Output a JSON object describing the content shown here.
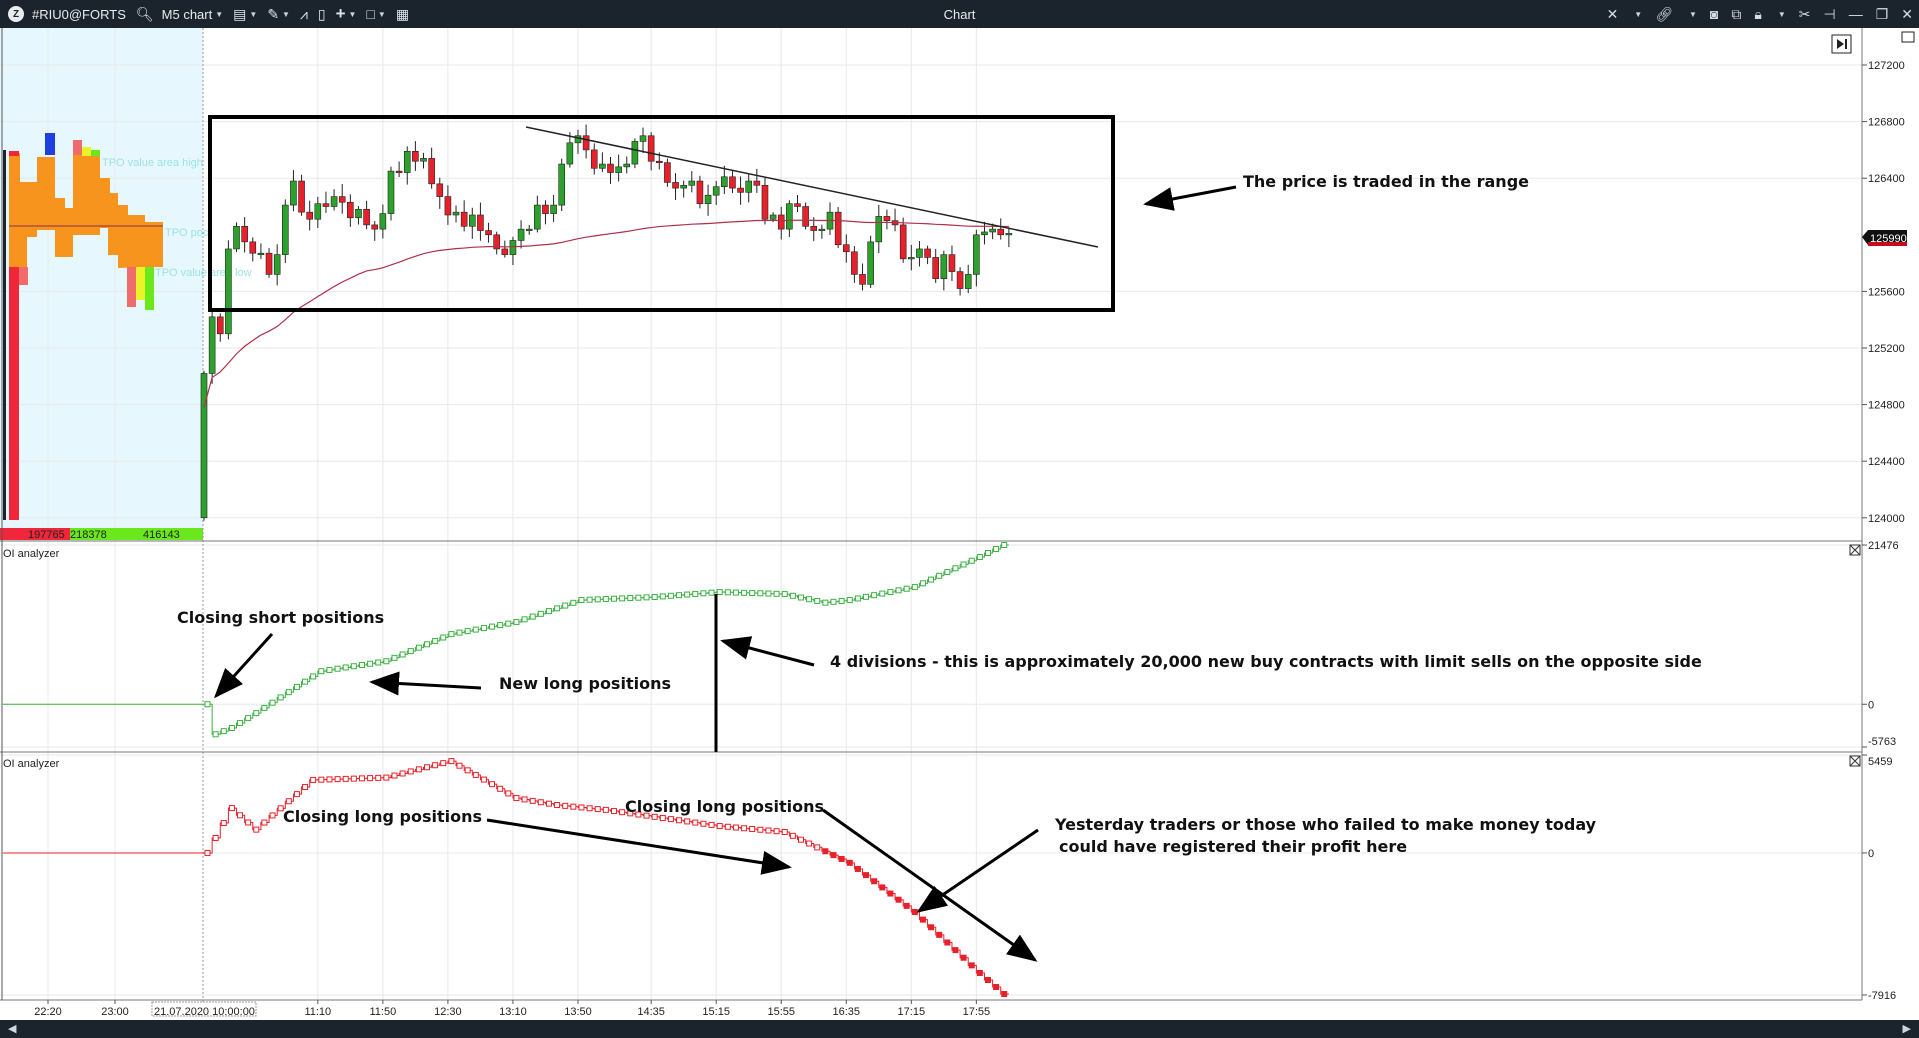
{
  "titlebar": {
    "symbol": "#RIU0@FORTS",
    "chart_type": "M5 chart",
    "window_title": "Chart",
    "left_icons": [
      "logo-icon",
      "search-icon",
      "display-icon",
      "pencil-icon",
      "indicator-icon",
      "template-icon",
      "crosshair-icon",
      "window-icon",
      "color-icon"
    ],
    "right_icons": [
      "cross-icon",
      "link-icon",
      "camera-icon",
      "copy-icon",
      "lock-icon",
      "tools-icon",
      "pin-icon",
      "minimize-icon",
      "restore-icon",
      "close-icon"
    ]
  },
  "price_axis": {
    "ticks": [
      "127200",
      "126800",
      "126400",
      "125600",
      "125200",
      "124800",
      "124400",
      "124000"
    ],
    "tick_values": [
      127200,
      126800,
      126400,
      125600,
      125200,
      124800,
      124400,
      124000
    ],
    "current_price": "125990"
  },
  "profile": {
    "labels": [
      "TPO value area high",
      "TPO poc",
      "TPO value area low"
    ],
    "volumes": [
      "197765",
      "218378",
      "416143"
    ]
  },
  "time_axis": {
    "labels": [
      "22:20",
      "23:00",
      "11:10",
      "11:50",
      "12:30",
      "13:10",
      "13:50",
      "14:35",
      "15:15",
      "15:55",
      "16:35",
      "17:15",
      "17:55"
    ],
    "cursor_label": "21.07.2020 10:00:00"
  },
  "candles": {
    "first_open": 124000,
    "closes": [
      125020,
      125420,
      125300,
      125900,
      126060,
      125950,
      125870,
      125870,
      125720,
      125860,
      126210,
      126380,
      126160,
      126110,
      126220,
      126200,
      126270,
      126230,
      126120,
      126180,
      126070,
      126040,
      126150,
      126450,
      126440,
      126590,
      126520,
      126540,
      126360,
      126270,
      126140,
      126160,
      126060,
      126140,
      126030,
      126000,
      125900,
      125860,
      125960,
      126040,
      126040,
      126210,
      126150,
      126210,
      126500,
      126650,
      126700,
      126600,
      126470,
      126500,
      126440,
      126480,
      126500,
      126660,
      126700,
      126520,
      126510,
      126370,
      126330,
      126350,
      126380,
      126220,
      126280,
      126340,
      126410,
      126330,
      126300,
      126380,
      126350,
      126110,
      126140,
      126040,
      126220,
      126200,
      126060,
      126030,
      126040,
      126160,
      125930,
      125880,
      125720,
      125650,
      125950,
      126130,
      126100,
      126070,
      125830,
      125840,
      125900,
      125840,
      125690,
      125860,
      125740,
      125620,
      125720,
      126000,
      126020,
      126040,
      126000,
      126010
    ],
    "up_color": "#2ca12c",
    "down_color": "#e8202a"
  },
  "oi_panel_1": {
    "label": "OI analyzer",
    "axis_labels": [
      "21476",
      "0",
      "-5763"
    ],
    "axis_values": [
      21476,
      0,
      -5763
    ],
    "points": [
      [
        "10:00",
        0
      ],
      [
        "10:05",
        -4050
      ],
      [
        "10:15",
        -3200
      ],
      [
        "10:30",
        -1200
      ],
      [
        "11:10",
        4460
      ],
      [
        "11:50",
        5800
      ],
      [
        "12:30",
        9460
      ],
      [
        "13:10",
        11080
      ],
      [
        "13:50",
        14050
      ],
      [
        "14:35",
        14460
      ],
      [
        "15:15",
        15130
      ],
      [
        "15:55",
        14860
      ],
      [
        "16:20",
        13700
      ],
      [
        "16:35",
        14050
      ],
      [
        "17:15",
        15800
      ],
      [
        "17:55",
        19860
      ],
      [
        "18:10",
        21476
      ]
    ],
    "color": "#3cb043"
  },
  "oi_panel_2": {
    "label": "OI analyzer",
    "axis_labels": [
      "5459",
      "0",
      "-7916"
    ],
    "axis_values": [
      5459,
      0,
      -7916
    ],
    "points": [
      [
        "10:00",
        0
      ],
      [
        "10:15",
        2500
      ],
      [
        "10:30",
        1300
      ],
      [
        "11:05",
        4070
      ],
      [
        "11:50",
        4200
      ],
      [
        "12:30",
        5120
      ],
      [
        "13:10",
        3060
      ],
      [
        "13:35",
        2670
      ],
      [
        "14:05",
        2400
      ],
      [
        "15:15",
        1500
      ],
      [
        "15:55",
        1170
      ],
      [
        "16:35",
        -550
      ],
      [
        "17:15",
        -3290
      ],
      [
        "17:55",
        -6690
      ],
      [
        "18:10",
        -7860
      ]
    ],
    "color": "#e8202a"
  },
  "annotations": {
    "range": "The price is traded in the range",
    "closing_short": "Closing short positions",
    "new_long": "New long positions",
    "divisions": "4 divisions - this is approximately 20,000 new buy contracts with limit sells on the opposite side",
    "closing_long_1": "Closing long positions",
    "closing_long_2": "Closing long positions",
    "yesterday_1": "Yesterday traders or those who failed to make money today",
    "yesterday_2": "could have registered their profit here"
  }
}
